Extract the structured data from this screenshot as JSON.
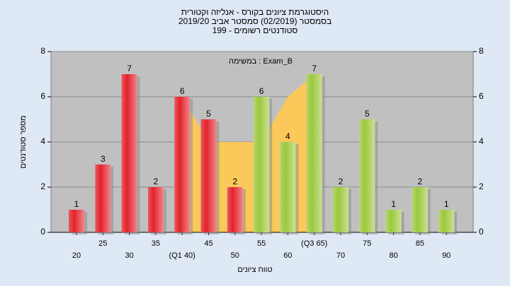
{
  "chart_data": {
    "type": "bar",
    "title": [
      "היסטוגרמת ציונים בקורס - אנליזה וקטורית",
      "בסמסטר  (02/2019)  סמסטר אביב 2019/20",
      "סטודנטים רשומים - 199"
    ],
    "annotation": "Exam_B : במשימה",
    "x_label": "טווח ציונים",
    "y_label": "מספר סטודנטים",
    "categories": [
      "20",
      "25",
      "30",
      "35",
      "(Q1 40)",
      "45",
      "50",
      "55",
      "60",
      "(Q3 65)",
      "70",
      "75",
      "80",
      "85",
      "90"
    ],
    "values": [
      1,
      3,
      7,
      2,
      6,
      5,
      2,
      6,
      4,
      7,
      2,
      5,
      1,
      2,
      1
    ],
    "colors": [
      "#e3222b",
      "#e3222b",
      "#e3222b",
      "#e3222b",
      "#e3222b",
      "#e3222b",
      "#e3222b",
      "#9cc83c",
      "#9cc83c",
      "#9cc83c",
      "#9cc83c",
      "#9cc83c",
      "#9cc83c",
      "#9cc83c",
      "#9cc83c"
    ],
    "area": {
      "color": "#fbc85a",
      "values": [
        null,
        null,
        null,
        null,
        6,
        4,
        4,
        4,
        6,
        7,
        null,
        null,
        null,
        null,
        null
      ]
    },
    "ylim": [
      0,
      8
    ],
    "yticks": [
      0,
      2,
      4,
      6,
      8
    ],
    "y2lim": [
      0,
      8
    ],
    "y2ticks": [
      0,
      2,
      4,
      6,
      8
    ],
    "grid": true
  }
}
